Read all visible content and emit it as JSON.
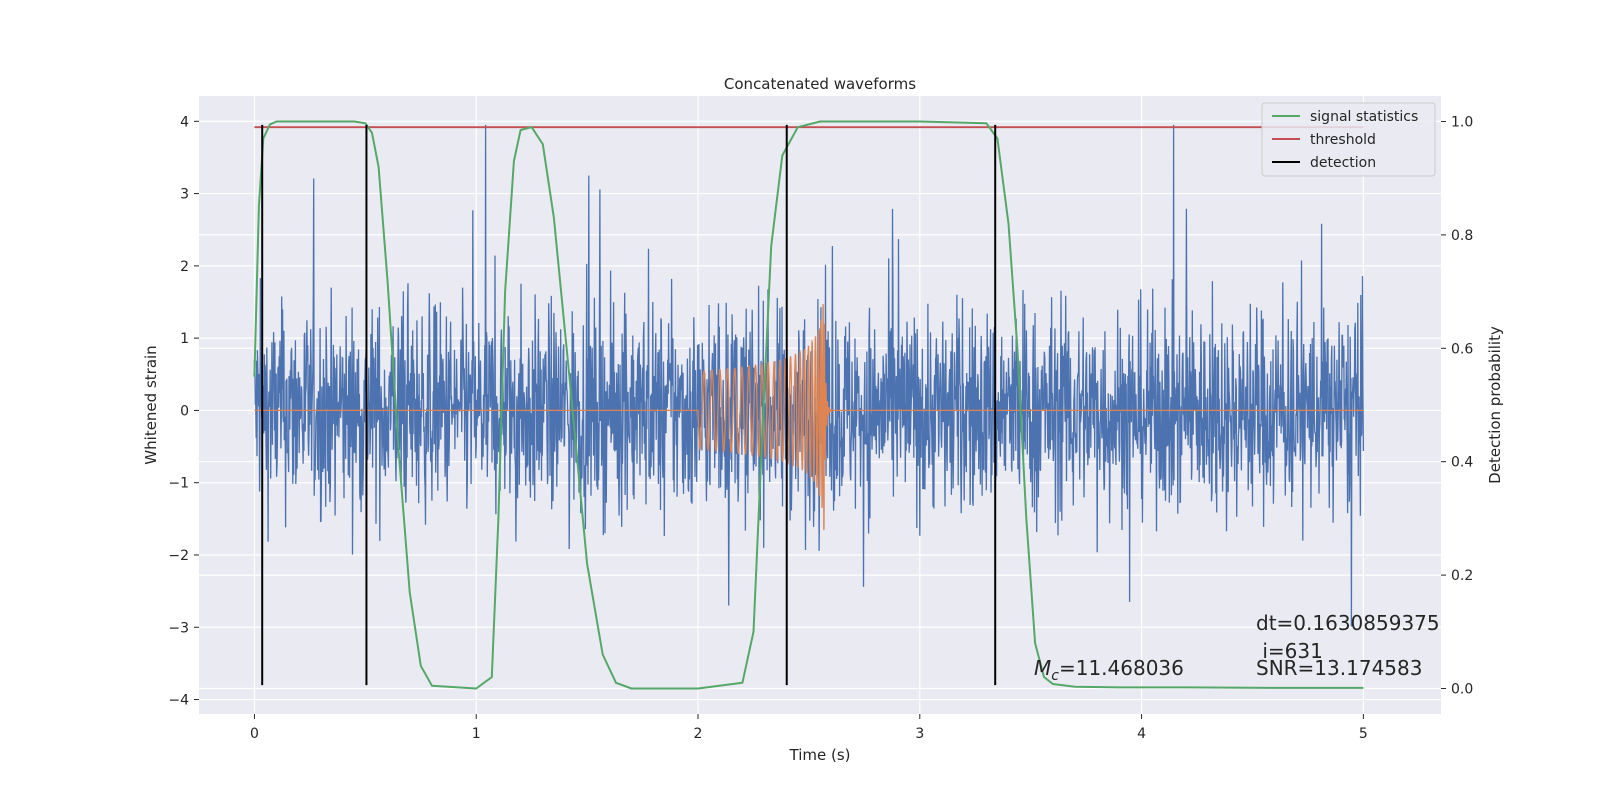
{
  "chart_data": {
    "type": "line",
    "title": "Concatenated waveforms",
    "xlabel": "Time (s)",
    "ylabel_left": "Whitened strain",
    "ylabel_right": "Detection probability",
    "xlim": [
      -0.25,
      5.35
    ],
    "ylim_left": [
      -4.2,
      4.35
    ],
    "ylim_right": [
      -0.045,
      1.045
    ],
    "grid": true,
    "legend_position": "top-right",
    "x_ticks": [
      0,
      1,
      2,
      3,
      4,
      5
    ],
    "x_tick_labels": [
      "0",
      "1",
      "2",
      "3",
      "4",
      "5"
    ],
    "y_left_ticks": [
      4,
      3,
      2,
      1,
      0,
      -1,
      -2,
      -3,
      -4
    ],
    "y_left_tick_labels": [
      "4",
      "3",
      "2",
      "1",
      "0",
      "−1",
      "−2",
      "−3",
      "−4"
    ],
    "y_right_ticks": [
      1.0,
      0.8,
      0.6,
      0.4,
      0.2,
      0.0
    ],
    "y_right_tick_labels": [
      "1.0",
      "0.8",
      "0.6",
      "0.4",
      "0.2",
      "0.0"
    ],
    "colors": {
      "strain": "#4c72b0",
      "template": "#dd8452",
      "signal_statistics": "#55a868",
      "threshold": "#c44e52",
      "detection": "#000000",
      "axes_face": "#eaeaf2",
      "grid": "#ffffff"
    },
    "series": [
      {
        "name": "signal statistics",
        "axis": "right",
        "x": [
          0.0,
          0.02,
          0.04,
          0.07,
          0.1,
          0.2,
          0.3,
          0.4,
          0.45,
          0.5,
          0.53,
          0.56,
          0.6,
          0.65,
          0.7,
          0.75,
          0.8,
          1.0,
          1.07,
          1.1,
          1.13,
          1.17,
          1.2,
          1.25,
          1.3,
          1.35,
          1.42,
          1.5,
          1.57,
          1.63,
          1.7,
          2.0,
          2.2,
          2.25,
          2.29,
          2.33,
          2.38,
          2.45,
          2.55,
          2.7,
          3.0,
          3.3,
          3.35,
          3.4,
          3.44,
          3.48,
          3.52,
          3.56,
          3.6,
          3.7,
          3.9,
          4.2,
          4.6,
          5.0
        ],
        "y": [
          0.55,
          0.85,
          0.97,
          0.995,
          1.0,
          1.0,
          1.0,
          1.0,
          1.0,
          0.997,
          0.98,
          0.92,
          0.72,
          0.42,
          0.17,
          0.04,
          0.005,
          0.0,
          0.02,
          0.3,
          0.7,
          0.93,
          0.985,
          0.99,
          0.96,
          0.83,
          0.55,
          0.22,
          0.06,
          0.01,
          0.0,
          0.0,
          0.01,
          0.1,
          0.45,
          0.78,
          0.94,
          0.99,
          1.0,
          1.0,
          1.0,
          0.997,
          0.97,
          0.82,
          0.6,
          0.3,
          0.08,
          0.02,
          0.008,
          0.003,
          0.002,
          0.002,
          0.001,
          0.001
        ]
      },
      {
        "name": "threshold",
        "axis": "right",
        "x": [
          0.0,
          5.0
        ],
        "y": [
          0.99,
          0.99
        ]
      },
      {
        "name": "detection",
        "axis": "left",
        "vertical_lines_x": [
          0.035,
          0.505,
          2.4,
          3.34
        ],
        "y_range": [
          -3.8,
          3.95
        ]
      },
      {
        "name": "",
        "description_kind": "whitened strain noise",
        "axis": "left",
        "x_range": [
          0.0,
          5.0
        ],
        "typical_amplitude": 0.7,
        "extreme_range": [
          -3.8,
          3.95
        ]
      },
      {
        "name": "",
        "description_kind": "chirp template",
        "axis": "left",
        "x_range": [
          0.0,
          5.0
        ],
        "chirp_start": 2.0,
        "merger": 2.57,
        "peak_amplitude": 2.0
      }
    ],
    "legend": [
      "signal statistics",
      "threshold",
      "detection"
    ],
    "annotations": {
      "dt": "dt=0.1630859375",
      "i": " i=631",
      "snr": "SNR=13.174583",
      "mc_symbol": "M",
      "mc_sub": "c",
      "mc_value": "=11.468036"
    }
  }
}
